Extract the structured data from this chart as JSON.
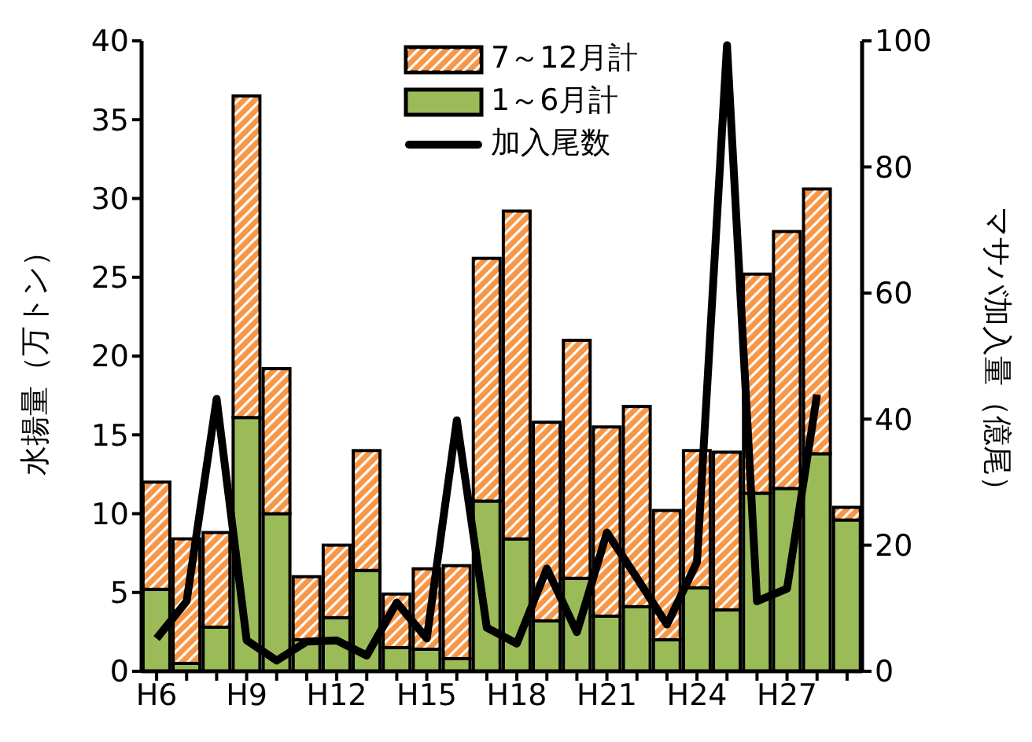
{
  "chart_data": {
    "type": "bar",
    "stacked": true,
    "categories": [
      "H6",
      null,
      null,
      "H9",
      null,
      null,
      "H12",
      null,
      null,
      "H15",
      null,
      null,
      "H18",
      null,
      null,
      "H21",
      null,
      null,
      "H24",
      null,
      null,
      "H27",
      null,
      null
    ],
    "ylabel": "水揚量（万トン）",
    "y2label": "マサバ加入量（億尾）",
    "ylim": [
      0,
      40
    ],
    "yticks": [
      0,
      5,
      10,
      15,
      20,
      25,
      30,
      35,
      40
    ],
    "y2lim": [
      0,
      100
    ],
    "y2ticks": [
      0,
      20,
      40,
      60,
      80,
      100
    ],
    "grid": false,
    "legend": "top right",
    "marker": "none",
    "line_style": "solid",
    "series": [
      {
        "name": "1～6月計",
        "color": "#9bbb59",
        "values": [
          5.2,
          0.5,
          2.8,
          16.1,
          10.0,
          2.0,
          3.4,
          6.4,
          1.5,
          1.4,
          0.8,
          10.8,
          8.4,
          3.2,
          5.9,
          3.5,
          4.1,
          2.0,
          5.3,
          3.9,
          11.3,
          11.6,
          13.8,
          9.6
        ]
      },
      {
        "name": "7～12月計",
        "color": "#f79646",
        "values": [
          6.8,
          7.9,
          6.0,
          20.4,
          9.2,
          4.0,
          4.6,
          7.6,
          3.4,
          5.1,
          5.9,
          15.4,
          20.8,
          12.6,
          15.1,
          12.0,
          12.7,
          8.2,
          8.7,
          10.0,
          13.9,
          16.3,
          16.8,
          0.8
        ]
      },
      {
        "name": "加入尾数",
        "type": "line",
        "axis": "y2",
        "color": "#000000",
        "values": [
          5.2,
          11.1,
          43.2,
          4.9,
          1.7,
          4.7,
          4.9,
          2.5,
          10.9,
          5.2,
          39.8,
          6.9,
          4.4,
          16.3,
          6.2,
          22.0,
          14.8,
          7.4,
          17.3,
          99.3,
          11.1,
          13.1,
          43.9,
          null
        ]
      }
    ]
  }
}
